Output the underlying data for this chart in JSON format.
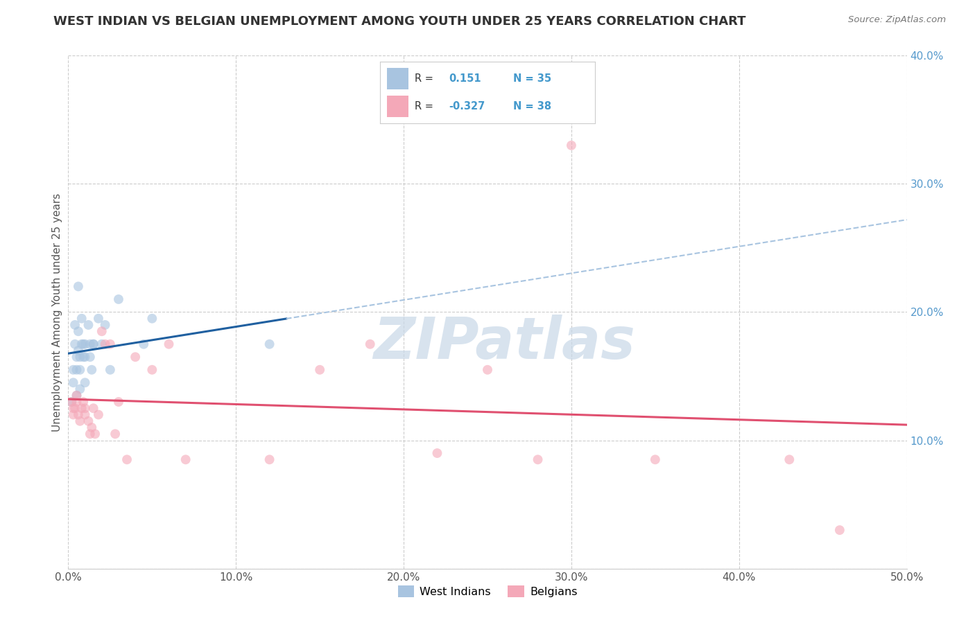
{
  "title": "WEST INDIAN VS BELGIAN UNEMPLOYMENT AMONG YOUTH UNDER 25 YEARS CORRELATION CHART",
  "source": "Source: ZipAtlas.com",
  "ylabel": "Unemployment Among Youth under 25 years",
  "xlim": [
    0.0,
    0.5
  ],
  "ylim": [
    0.0,
    0.4
  ],
  "xticks": [
    0.0,
    0.1,
    0.2,
    0.3,
    0.4,
    0.5
  ],
  "xticklabels": [
    "0.0%",
    "10.0%",
    "20.0%",
    "30.0%",
    "40.0%",
    "50.0%"
  ],
  "yticks_right": [
    0.0,
    0.1,
    0.2,
    0.3,
    0.4
  ],
  "yticklabels_right": [
    "",
    "10.0%",
    "20.0%",
    "30.0%",
    "40.0%"
  ],
  "west_indian_color": "#a8c4e0",
  "belgian_color": "#f4a8b8",
  "trend_wi_solid_color": "#2060a0",
  "trend_wi_dashed_color": "#a8c4e0",
  "trend_be_color": "#e05070",
  "legend_wi_label": "West Indians",
  "legend_be_label": "Belgians",
  "background_color": "#ffffff",
  "grid_color": "#cccccc",
  "title_fontsize": 13,
  "axis_label_fontsize": 11,
  "tick_fontsize": 11,
  "marker_size": 100,
  "marker_alpha": 0.6,
  "watermark_text": "ZIPatlas",
  "watermark_color": "#c8d8e8",
  "watermark_fontsize": 60,
  "west_indian_x": [
    0.002,
    0.003,
    0.003,
    0.004,
    0.004,
    0.005,
    0.005,
    0.005,
    0.006,
    0.006,
    0.006,
    0.007,
    0.007,
    0.007,
    0.008,
    0.008,
    0.009,
    0.009,
    0.01,
    0.01,
    0.01,
    0.012,
    0.013,
    0.013,
    0.014,
    0.015,
    0.015,
    0.018,
    0.02,
    0.022,
    0.025,
    0.03,
    0.045,
    0.05,
    0.12
  ],
  "west_indian_y": [
    0.13,
    0.145,
    0.155,
    0.175,
    0.19,
    0.165,
    0.155,
    0.135,
    0.22,
    0.185,
    0.17,
    0.165,
    0.155,
    0.14,
    0.195,
    0.175,
    0.165,
    0.175,
    0.145,
    0.165,
    0.175,
    0.19,
    0.165,
    0.175,
    0.155,
    0.175,
    0.175,
    0.195,
    0.175,
    0.19,
    0.155,
    0.21,
    0.175,
    0.195,
    0.175
  ],
  "belgian_x": [
    0.002,
    0.003,
    0.003,
    0.004,
    0.005,
    0.005,
    0.006,
    0.007,
    0.008,
    0.009,
    0.01,
    0.01,
    0.012,
    0.013,
    0.014,
    0.015,
    0.016,
    0.018,
    0.02,
    0.022,
    0.025,
    0.028,
    0.03,
    0.035,
    0.04,
    0.05,
    0.06,
    0.07,
    0.12,
    0.15,
    0.18,
    0.22,
    0.25,
    0.28,
    0.3,
    0.35,
    0.43,
    0.46
  ],
  "belgian_y": [
    0.13,
    0.125,
    0.12,
    0.125,
    0.135,
    0.13,
    0.12,
    0.115,
    0.125,
    0.13,
    0.12,
    0.125,
    0.115,
    0.105,
    0.11,
    0.125,
    0.105,
    0.12,
    0.185,
    0.175,
    0.175,
    0.105,
    0.13,
    0.085,
    0.165,
    0.155,
    0.175,
    0.085,
    0.085,
    0.155,
    0.175,
    0.09,
    0.155,
    0.085,
    0.33,
    0.085,
    0.085,
    0.03
  ]
}
